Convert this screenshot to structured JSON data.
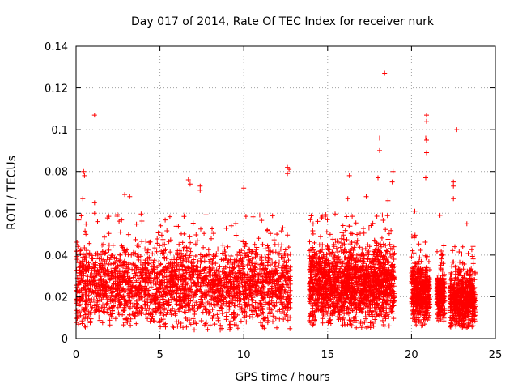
{
  "chart_data": {
    "type": "scatter",
    "title": "Day 017 of 2014, Rate Of TEC Index for receiver nurk",
    "xlabel": "GPS time / hours",
    "ylabel": "ROTI / TECUs",
    "xlim": [
      0,
      25
    ],
    "ylim": [
      0,
      0.14
    ],
    "xticks": [
      0,
      5,
      10,
      15,
      20,
      25
    ],
    "xtick_labels": [
      "0",
      "5",
      "10",
      "15",
      "20",
      "25"
    ],
    "yticks": [
      0,
      0.02,
      0.04,
      0.06,
      0.08,
      0.1,
      0.12,
      0.14
    ],
    "ytick_labels": [
      "0",
      "0.02",
      "0.04",
      "0.06",
      "0.08",
      "0.1",
      "0.12",
      "0.14"
    ],
    "grid": true,
    "marker": "+",
    "color": "#ff0000",
    "segments": [
      {
        "x_start": 0.0,
        "x_end": 12.8,
        "y_min": 0.004,
        "y_max": 0.06,
        "density": "dense"
      },
      {
        "x_start": 13.9,
        "x_end": 19.0,
        "y_min": 0.005,
        "y_max": 0.06,
        "density": "dense"
      },
      {
        "x_start": 20.0,
        "x_end": 21.1,
        "y_min": 0.006,
        "y_max": 0.05,
        "density": "dense"
      },
      {
        "x_start": 21.5,
        "x_end": 22.0,
        "y_min": 0.008,
        "y_max": 0.045,
        "density": "dense"
      },
      {
        "x_start": 22.3,
        "x_end": 23.8,
        "y_min": 0.005,
        "y_max": 0.045,
        "density": "dense"
      }
    ],
    "notable_points": [
      {
        "x": 1.1,
        "y": 0.107
      },
      {
        "x": 18.4,
        "y": 0.127
      },
      {
        "x": 22.7,
        "y": 0.1
      },
      {
        "x": 20.9,
        "y": 0.107
      },
      {
        "x": 20.9,
        "y": 0.104
      },
      {
        "x": 20.85,
        "y": 0.096
      },
      {
        "x": 20.9,
        "y": 0.095
      },
      {
        "x": 20.9,
        "y": 0.089
      },
      {
        "x": 20.85,
        "y": 0.077
      },
      {
        "x": 18.1,
        "y": 0.096
      },
      {
        "x": 18.1,
        "y": 0.09
      },
      {
        "x": 18.0,
        "y": 0.077
      },
      {
        "x": 18.9,
        "y": 0.08
      },
      {
        "x": 18.85,
        "y": 0.075
      },
      {
        "x": 0.45,
        "y": 0.08
      },
      {
        "x": 0.5,
        "y": 0.078
      },
      {
        "x": 0.4,
        "y": 0.067
      },
      {
        "x": 1.1,
        "y": 0.065
      },
      {
        "x": 1.1,
        "y": 0.06
      },
      {
        "x": 6.7,
        "y": 0.076
      },
      {
        "x": 6.8,
        "y": 0.074
      },
      {
        "x": 7.4,
        "y": 0.073
      },
      {
        "x": 7.4,
        "y": 0.071
      },
      {
        "x": 10.0,
        "y": 0.072
      },
      {
        "x": 12.6,
        "y": 0.082
      },
      {
        "x": 12.7,
        "y": 0.081
      },
      {
        "x": 12.6,
        "y": 0.079
      },
      {
        "x": 16.3,
        "y": 0.078
      },
      {
        "x": 22.5,
        "y": 0.075
      },
      {
        "x": 22.5,
        "y": 0.073
      },
      {
        "x": 22.5,
        "y": 0.067
      },
      {
        "x": 20.2,
        "y": 0.061
      },
      {
        "x": 2.9,
        "y": 0.069
      },
      {
        "x": 3.2,
        "y": 0.068
      },
      {
        "x": 17.3,
        "y": 0.068
      },
      {
        "x": 18.6,
        "y": 0.066
      },
      {
        "x": 16.2,
        "y": 0.067
      },
      {
        "x": 21.7,
        "y": 0.059
      },
      {
        "x": 23.3,
        "y": 0.055
      }
    ]
  }
}
